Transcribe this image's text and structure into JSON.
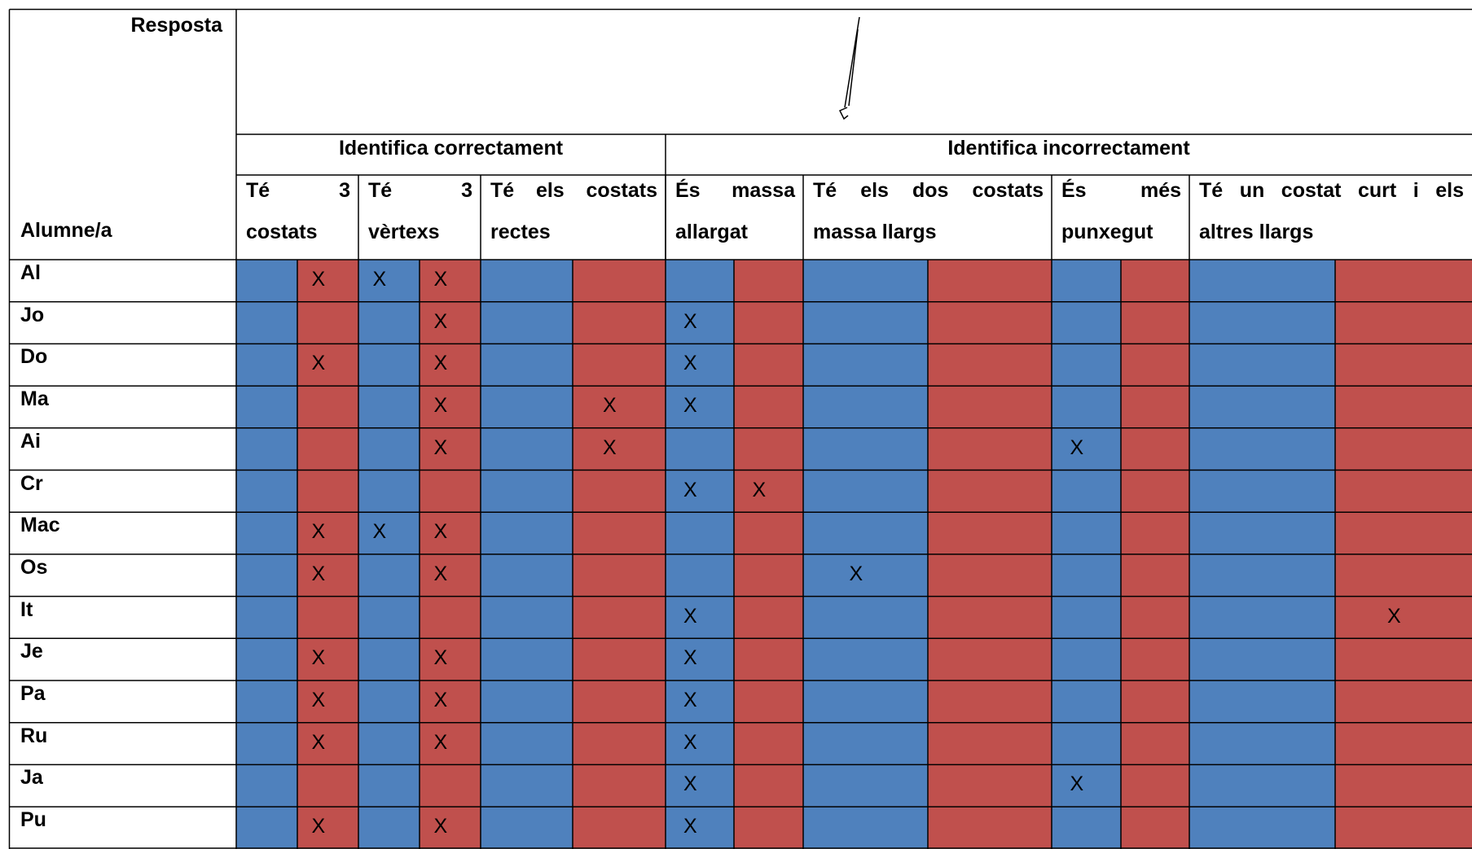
{
  "header": {
    "response": "Resposta",
    "student": "Alumne/a",
    "groups": [
      "Identifica correctament",
      "Identifica incorrectament"
    ],
    "criteria": [
      "Té 3 costats",
      "Té 3 vèrtexs",
      "Té els costats rectes",
      "És massa allargat",
      "Té els dos costats massa llargs",
      "És més punxegut",
      "Té un costat curt i els altres llargs"
    ]
  },
  "table": {
    "rows": [
      {
        "name": "Al",
        "cells": [
          null,
          "X",
          "X",
          "X",
          null,
          null,
          null,
          null,
          null,
          null,
          null,
          null,
          null,
          null
        ]
      },
      {
        "name": "Jo",
        "cells": [
          null,
          null,
          null,
          "X",
          null,
          null,
          "X",
          null,
          null,
          null,
          null,
          null,
          null,
          null
        ]
      },
      {
        "name": "Do",
        "cells": [
          null,
          "X",
          null,
          "X",
          null,
          null,
          "X",
          null,
          null,
          null,
          null,
          null,
          null,
          null
        ]
      },
      {
        "name": "Ma",
        "cells": [
          null,
          null,
          null,
          "X",
          null,
          "X",
          "X",
          null,
          null,
          null,
          null,
          null,
          null,
          null
        ]
      },
      {
        "name": "Ai",
        "cells": [
          null,
          null,
          null,
          "X",
          null,
          "X",
          null,
          null,
          null,
          null,
          "X",
          null,
          null,
          null
        ]
      },
      {
        "name": "Cr",
        "cells": [
          null,
          null,
          null,
          null,
          null,
          null,
          "X",
          "X",
          null,
          null,
          null,
          null,
          null,
          null
        ]
      },
      {
        "name": "Mac",
        "cells": [
          null,
          "X",
          "X",
          "X",
          null,
          null,
          null,
          null,
          null,
          null,
          null,
          null,
          null,
          null
        ]
      },
      {
        "name": "Os",
        "cells": [
          null,
          "X",
          null,
          "X",
          null,
          null,
          null,
          null,
          "X",
          null,
          null,
          null,
          null,
          null
        ]
      },
      {
        "name": "It",
        "cells": [
          null,
          null,
          null,
          null,
          null,
          null,
          "X",
          null,
          null,
          null,
          null,
          null,
          null,
          "X"
        ]
      },
      {
        "name": "Je",
        "cells": [
          null,
          "X",
          null,
          "X",
          null,
          null,
          "X",
          null,
          null,
          null,
          null,
          null,
          null,
          null
        ]
      },
      {
        "name": "Pa",
        "cells": [
          null,
          "X",
          null,
          "X",
          null,
          null,
          "X",
          null,
          null,
          null,
          null,
          null,
          null,
          null
        ]
      },
      {
        "name": "Ru",
        "cells": [
          null,
          "X",
          null,
          "X",
          null,
          null,
          "X",
          null,
          null,
          null,
          null,
          null,
          null,
          null
        ]
      },
      {
        "name": "Ja",
        "cells": [
          null,
          null,
          null,
          null,
          null,
          null,
          "X",
          null,
          null,
          null,
          "X",
          null,
          null,
          null
        ]
      },
      {
        "name": "Pu",
        "cells": [
          null,
          "X",
          null,
          "X",
          null,
          null,
          "X",
          null,
          null,
          null,
          null,
          null,
          null,
          null
        ]
      }
    ]
  }
}
